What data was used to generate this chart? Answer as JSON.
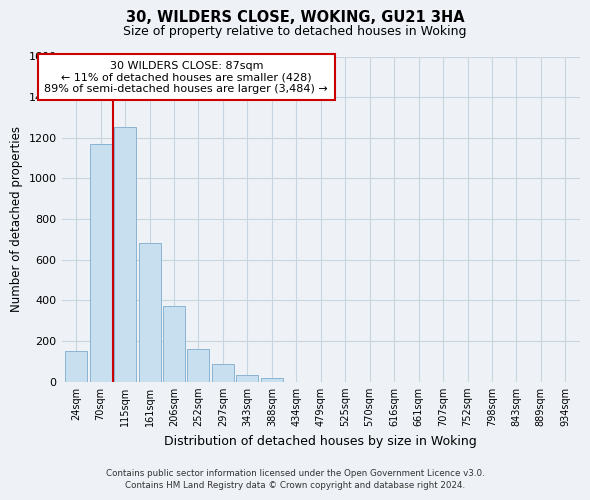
{
  "title": "30, WILDERS CLOSE, WOKING, GU21 3HA",
  "subtitle": "Size of property relative to detached houses in Woking",
  "xlabel": "Distribution of detached houses by size in Woking",
  "ylabel": "Number of detached properties",
  "bar_labels": [
    "24sqm",
    "70sqm",
    "115sqm",
    "161sqm",
    "206sqm",
    "252sqm",
    "297sqm",
    "343sqm",
    "388sqm",
    "434sqm",
    "479sqm",
    "525sqm",
    "570sqm",
    "616sqm",
    "661sqm",
    "707sqm",
    "752sqm",
    "798sqm",
    "843sqm",
    "889sqm",
    "934sqm"
  ],
  "bar_values": [
    152,
    1170,
    1255,
    685,
    375,
    160,
    90,
    35,
    20,
    0,
    0,
    0,
    0,
    0,
    0,
    0,
    0,
    0,
    0,
    0,
    0
  ],
  "bar_color": "#c8dff0",
  "bar_edge_color": "#8ab4d4",
  "property_line_x": 1.5,
  "property_line_color": "#cc0000",
  "annotation_title": "30 WILDERS CLOSE: 87sqm",
  "annotation_line1": "← 11% of detached houses are smaller (428)",
  "annotation_line2": "89% of semi-detached houses are larger (3,484) →",
  "annotation_box_color": "#ffffff",
  "annotation_box_edge": "#cc0000",
  "ylim": [
    0,
    1600
  ],
  "yticks": [
    0,
    200,
    400,
    600,
    800,
    1000,
    1200,
    1400,
    1600
  ],
  "footer1": "Contains HM Land Registry data © Crown copyright and database right 2024.",
  "footer2": "Contains public sector information licensed under the Open Government Licence v3.0.",
  "background_color": "#eef2f7",
  "plot_bg_color": "#eef2f7",
  "grid_color": "#c8d4e0"
}
